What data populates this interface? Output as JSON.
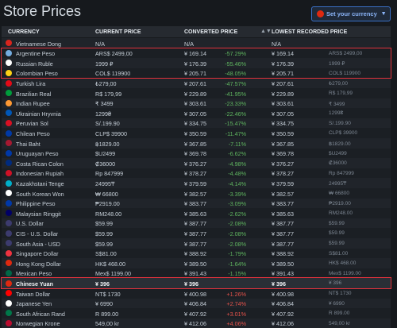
{
  "header": {
    "title": "Store Prices",
    "currency_button": "Set your currency"
  },
  "table": {
    "columns": [
      "CURRENCY",
      "CURRENT PRICE",
      "CONVERTED PRICE",
      "LOWEST RECORDED PRICE"
    ],
    "rows": [
      {
        "currency": "Vietnamese Dong",
        "current_price": "N/A",
        "converted_price": "N/A",
        "lowest_price": "N/A"
      },
      {
        "currency": "Argentine Peso",
        "current_price": "ARS$ 2499,00",
        "converted_price": "¥ 169.14",
        "difference": "-57.29%",
        "lowest_price": "¥ 169.14",
        "lowest_original": "ARS$ 2499,00"
      },
      {
        "currency": "Russian Ruble",
        "current_price": "1999 ₽",
        "converted_price": "¥ 176.39",
        "difference": "-55.46%",
        "lowest_price": "¥ 176.39",
        "lowest_original": "1999 ₽"
      },
      {
        "currency": "Colombian Peso",
        "current_price": "COL$ 119900",
        "converted_price": "¥ 205.71",
        "difference": "-48.05%",
        "lowest_price": "¥ 205.71",
        "lowest_original": "COL$ 119900"
      },
      {
        "currency": "Turkish Lira",
        "current_price": "₺279,00",
        "converted_price": "¥ 207.61",
        "difference": "-47.57%",
        "lowest_price": "¥ 207.61",
        "lowest_original": "₺279,00"
      },
      {
        "currency": "Brazilian Real",
        "current_price": "R$ 179,99",
        "converted_price": "¥ 229.89",
        "difference": "-41.95%",
        "lowest_price": "¥ 229.89",
        "lowest_original": "R$ 179,99"
      },
      {
        "currency": "Indian Rupee",
        "current_price": "₹ 3499",
        "converted_price": "¥ 303.61",
        "difference": "-23.33%",
        "lowest_price": "¥ 303.61",
        "lowest_original": "₹ 3499"
      },
      {
        "currency": "Ukrainian Hryvnia",
        "current_price": "1299₴",
        "converted_price": "¥ 307.05",
        "difference": "-22.46%",
        "lowest_price": "¥ 307.05",
        "lowest_original": "1299₴"
      },
      {
        "currency": "Peruvian Sol",
        "current_price": "S/.199.90",
        "converted_price": "¥ 334.75",
        "difference": "-15.47%",
        "lowest_price": "¥ 334.75",
        "lowest_original": "S/.199.90"
      },
      {
        "currency": "Chilean Peso",
        "current_price": "CLP$ 39900",
        "converted_price": "¥ 350.59",
        "difference": "-11.47%",
        "lowest_price": "¥ 350.59",
        "lowest_original": "CLP$ 39900"
      },
      {
        "currency": "Thai Baht",
        "current_price": "฿1829.00",
        "converted_price": "¥ 367.85",
        "difference": "-7.11%",
        "lowest_price": "¥ 367.85",
        "lowest_original": "฿1829.00"
      },
      {
        "currency": "Uruguayan Peso",
        "current_price": "$U2499",
        "converted_price": "¥ 369.78",
        "difference": "-6.62%",
        "lowest_price": "¥ 369.78",
        "lowest_original": "$U2499"
      },
      {
        "currency": "Costa Rican Colon",
        "current_price": "₡36000",
        "converted_price": "¥ 376.27",
        "difference": "-4.98%",
        "lowest_price": "¥ 376.27",
        "lowest_original": "₡36000"
      },
      {
        "currency": "Indonesian Rupiah",
        "current_price": "Rp 847999",
        "converted_price": "¥ 378.27",
        "difference": "-4.48%",
        "lowest_price": "¥ 378.27",
        "lowest_original": "Rp 847999"
      },
      {
        "currency": "Kazakhstani Tenge",
        "current_price": "24995₸",
        "converted_price": "¥ 379.59",
        "difference": "-4.14%",
        "lowest_price": "¥ 379.59",
        "lowest_original": "24995₸"
      },
      {
        "currency": "South Korean Won",
        "current_price": "₩ 66800",
        "converted_price": "¥ 382.57",
        "difference": "-3.39%",
        "lowest_price": "¥ 382.57",
        "lowest_original": "₩ 66800"
      },
      {
        "currency": "Philippine Peso",
        "current_price": "₱2919.00",
        "converted_price": "¥ 383.77",
        "difference": "-3.09%",
        "lowest_price": "¥ 383.77",
        "lowest_original": "₱2919.00"
      },
      {
        "currency": "Malaysian Ringgit",
        "current_price": "RM248.00",
        "converted_price": "¥ 385.63",
        "difference": "-2.62%",
        "lowest_price": "¥ 385.63",
        "lowest_original": "RM248.00"
      },
      {
        "currency": "U.S. Dollar",
        "current_price": "$59.99",
        "converted_price": "¥ 387.77",
        "difference": "-2.08%",
        "lowest_price": "¥ 387.77",
        "lowest_original": "$59.99"
      },
      {
        "currency": "CIS - U.S. Dollar",
        "current_price": "$59.99",
        "converted_price": "¥ 387.77",
        "difference": "-2.08%",
        "lowest_price": "¥ 387.77",
        "lowest_original": "$59.99"
      },
      {
        "currency": "South Asia - USD",
        "current_price": "$59.99",
        "converted_price": "¥ 387.77",
        "difference": "-2.08%",
        "lowest_price": "¥ 387.77",
        "lowest_original": "$59.99"
      },
      {
        "currency": "Singapore Dollar",
        "current_price": "S$81.00",
        "converted_price": "¥ 388.92",
        "difference": "-1.79%",
        "lowest_price": "¥ 388.92",
        "lowest_original": "S$81.00"
      },
      {
        "currency": "Hong Kong Dollar",
        "current_price": "HK$ 468.00",
        "converted_price": "¥ 389.50",
        "difference": "-1.64%",
        "lowest_price": "¥ 389.50",
        "lowest_original": "HK$ 468.00"
      },
      {
        "currency": "Mexican Peso",
        "current_price": "Mex$ 1199.00",
        "converted_price": "¥ 391.43",
        "difference": "-1.15%",
        "lowest_price": "¥ 391.43",
        "lowest_original": "Mex$ 1199.00"
      },
      {
        "currency": "Chinese Yuan",
        "current_price": "¥ 396",
        "converted_price": "¥ 396",
        "lowest_price": "¥ 396",
        "lowest_original": "¥ 396"
      },
      {
        "currency": "Taiwan Dollar",
        "current_price": "NT$ 1730",
        "converted_price": "¥ 400.98",
        "difference": "+1.26%",
        "lowest_price": "¥ 400.98",
        "lowest_original": "NT$ 1730"
      },
      {
        "currency": "Japanese Yen",
        "current_price": "¥ 6990",
        "converted_price": "¥ 406.84",
        "difference": "+2.74%",
        "lowest_price": "¥ 406.84",
        "lowest_original": "¥ 6990"
      },
      {
        "currency": "South African Rand",
        "current_price": "R 899.00",
        "converted_price": "¥ 407.92",
        "difference": "+3.01%",
        "lowest_price": "¥ 407.92",
        "lowest_original": "R 899.00"
      },
      {
        "currency": "Norwegian Krone",
        "current_price": "549,00 kr",
        "converted_price": "¥ 412.06",
        "difference": "+4.06%",
        "lowest_price": "¥ 412.06",
        "lowest_original": "549,00 kr"
      }
    ]
  }
}
